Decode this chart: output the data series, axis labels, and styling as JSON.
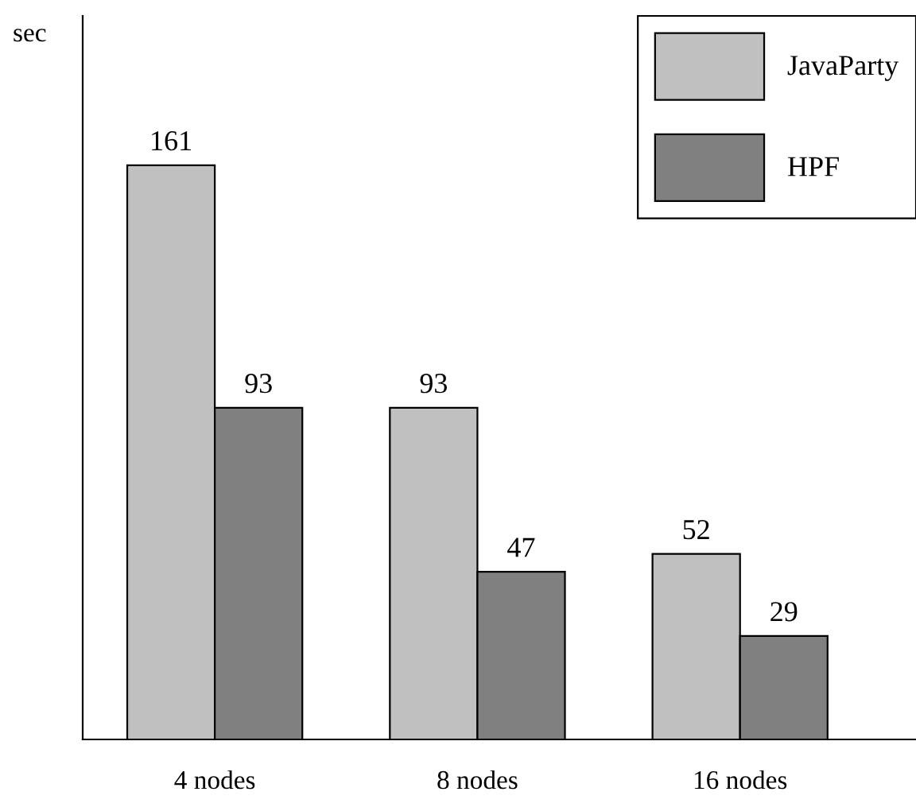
{
  "chart_data": {
    "type": "bar",
    "ylabel": "sec",
    "categories": [
      "4 nodes",
      "8 nodes",
      "16 nodes"
    ],
    "series": [
      {
        "name": "JavaParty",
        "color": "#c0c0c0",
        "values": [
          161,
          93,
          52
        ]
      },
      {
        "name": "HPF",
        "color": "#808080",
        "values": [
          93,
          47,
          29
        ]
      }
    ],
    "data_labels": true,
    "legend": "top right",
    "grid": false
  }
}
